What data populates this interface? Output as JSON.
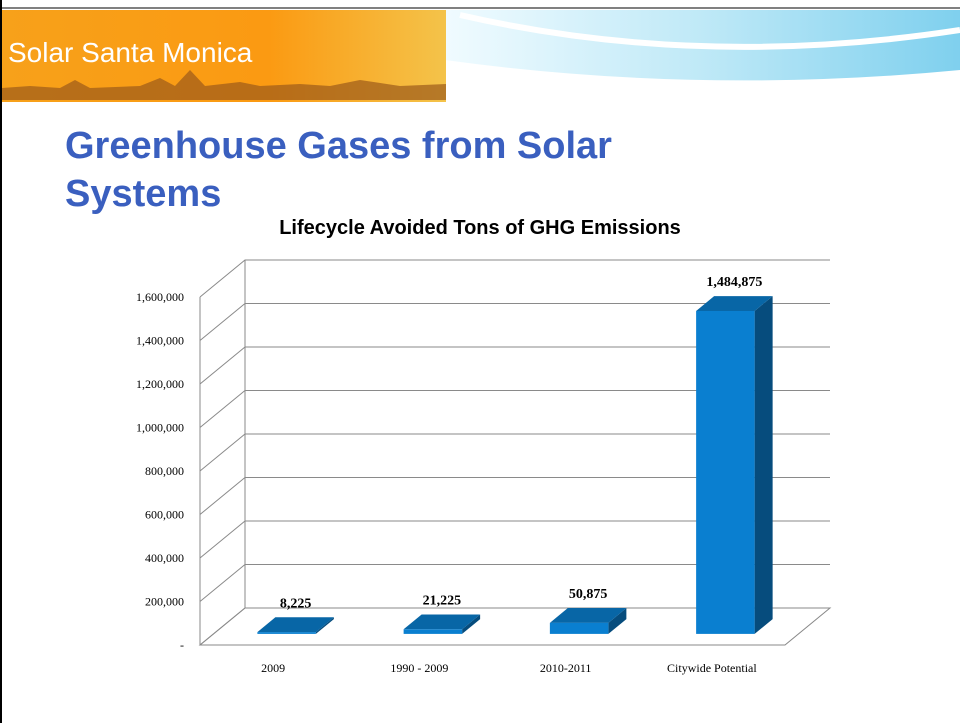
{
  "header": {
    "brand": "Solar Santa Monica"
  },
  "slide_title": "Greenhouse Gases from Solar Systems",
  "chart_data": {
    "type": "bar3d",
    "title": "Lifecycle Avoided Tons of GHG Emissions",
    "categories": [
      "2009",
      "1990 - 2009",
      "2010-2011",
      "Citywide Potential"
    ],
    "values": [
      8225,
      21225,
      50875,
      1484875
    ],
    "value_labels": [
      "8,225",
      "21,225",
      "50,875",
      "1,484,875"
    ],
    "color": "#0a7fd0",
    "ylim": [
      0,
      1600000
    ],
    "yticks": [
      {
        "value": 0,
        "label": "-"
      },
      {
        "value": 200000,
        "label": "200,000"
      },
      {
        "value": 400000,
        "label": "400,000"
      },
      {
        "value": 600000,
        "label": "600,000"
      },
      {
        "value": 800000,
        "label": "800,000"
      },
      {
        "value": 1000000,
        "label": "1,000,000"
      },
      {
        "value": 1200000,
        "label": "1,200,000"
      },
      {
        "value": 1400000,
        "label": "1,400,000"
      },
      {
        "value": 1600000,
        "label": "1,600,000"
      }
    ],
    "grid": true
  }
}
